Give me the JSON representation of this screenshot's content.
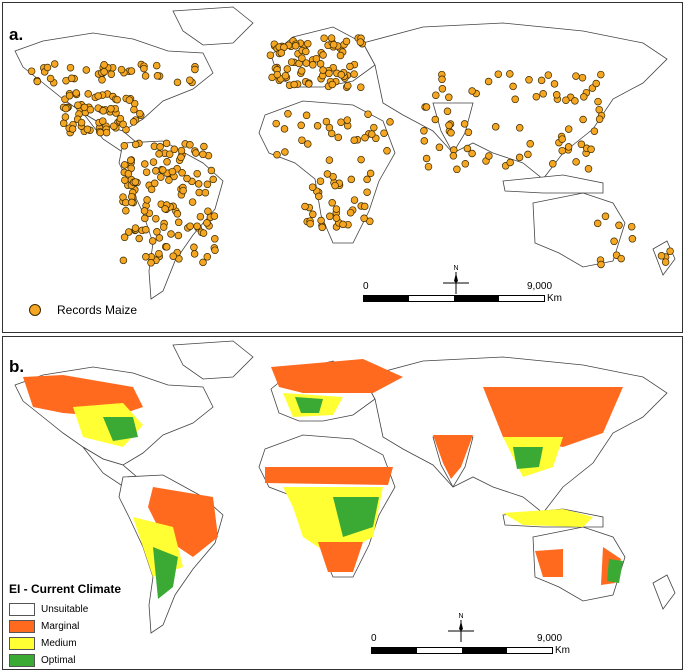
{
  "panel_a": {
    "letter": "a.",
    "legend_label": "Records Maize",
    "scale": {
      "start": "0",
      "end": "9,000",
      "unit": "Km"
    },
    "compass": "N"
  },
  "panel_b": {
    "letter": "b.",
    "legend_title": "EI - Current Climate",
    "legend": [
      {
        "label": "Unsuitable",
        "color": "#ffffff"
      },
      {
        "label": "Marginal",
        "color": "#FF6A1F"
      },
      {
        "label": "Medium",
        "color": "#FFFF33"
      },
      {
        "label": "Optimal",
        "color": "#3AAA35"
      }
    ],
    "scale": {
      "start": "0",
      "end": "9,000",
      "unit": "Km"
    },
    "compass": "N"
  },
  "colors": {
    "record_dot": "#F5A623",
    "marginal": "#FF6A1F",
    "medium": "#FFFF33",
    "optimal": "#3AAA35",
    "land": "#ffffff",
    "border": "#555555"
  }
}
